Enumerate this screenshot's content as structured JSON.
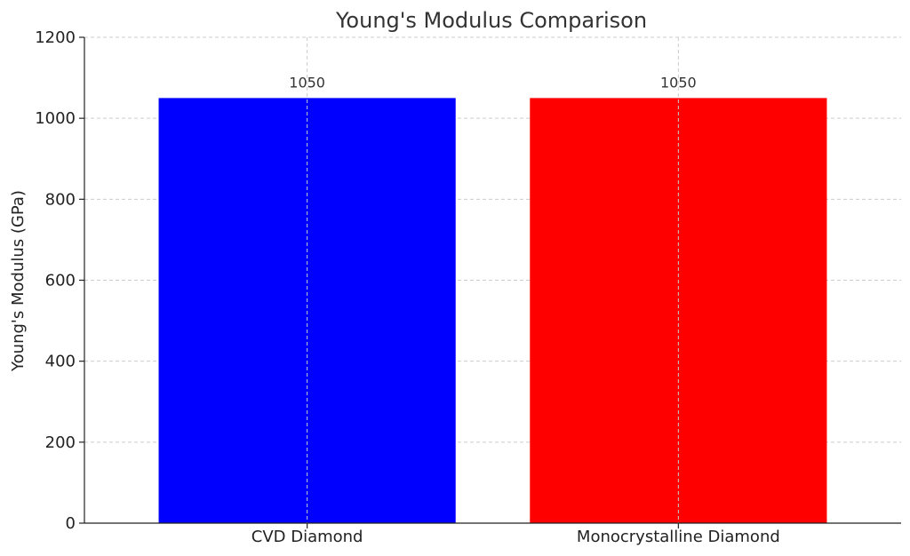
{
  "chart_data": {
    "type": "bar",
    "title": "Young's Modulus Comparison",
    "xlabel": "",
    "ylabel": "Young's Modulus (GPa)",
    "categories": [
      "CVD Diamond",
      "Monocrystalline Diamond"
    ],
    "values": [
      1050,
      1050
    ],
    "data_labels": [
      "1050",
      "1050"
    ],
    "colors": [
      "#0000ff",
      "#ff0000"
    ],
    "ylim": [
      0,
      1200
    ],
    "yticks": [
      0,
      200,
      400,
      600,
      800,
      1000,
      1200
    ],
    "grid": true,
    "legend": "none"
  }
}
